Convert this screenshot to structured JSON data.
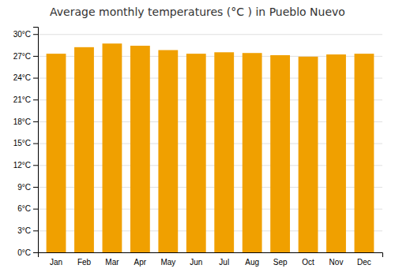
{
  "chart_data": {
    "type": "bar",
    "title": "Average monthly temperatures (°C ) in Pueblo Nuevo",
    "categories": [
      "Jan",
      "Feb",
      "Mar",
      "Apr",
      "May",
      "Jun",
      "Jul",
      "Aug",
      "Sep",
      "Oct",
      "Nov",
      "Dec"
    ],
    "values": [
      27.3,
      28.2,
      28.7,
      28.4,
      27.8,
      27.3,
      27.5,
      27.4,
      27.1,
      26.9,
      27.2,
      27.3
    ],
    "color": "#F0A000",
    "ylim": [
      0,
      31
    ],
    "yticks": [
      {
        "value": 0,
        "label": "0°C"
      },
      {
        "value": 3,
        "label": "3°C"
      },
      {
        "value": 6,
        "label": "6°C"
      },
      {
        "value": 9,
        "label": "9°C"
      },
      {
        "value": 12,
        "label": "12°C"
      },
      {
        "value": 15,
        "label": "15°C"
      },
      {
        "value": 18,
        "label": "18°C"
      },
      {
        "value": 21,
        "label": "21°C"
      },
      {
        "value": 24,
        "label": "24°C"
      },
      {
        "value": 27,
        "label": "27°C"
      },
      {
        "value": 30,
        "label": "30°C"
      }
    ],
    "grid": true
  }
}
